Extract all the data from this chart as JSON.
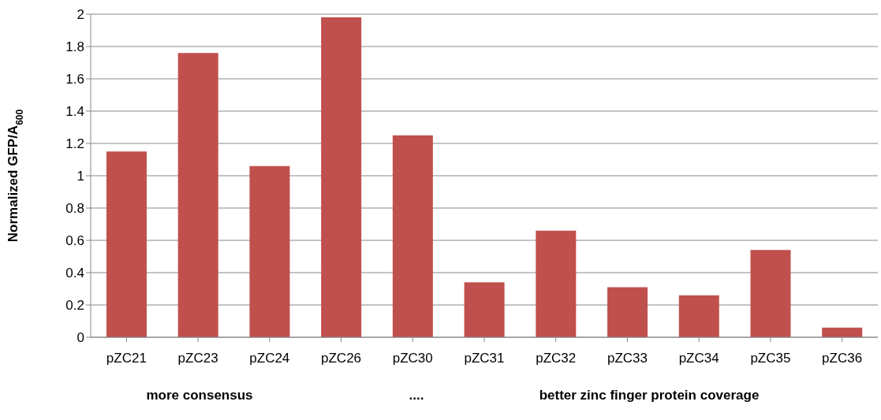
{
  "chart_data": {
    "type": "bar",
    "categories": [
      "pZC21",
      "pZC23",
      "pZC24",
      "pZC26",
      "pZC30",
      "pZC31",
      "pZC32",
      "pZC33",
      "pZC34",
      "pZC35",
      "pZC36"
    ],
    "series": [
      {
        "color": "#c0504d",
        "values": [
          1.15,
          1.76,
          1.06,
          1.98,
          1.25,
          0.34,
          0.66,
          0.31,
          0.26,
          0.54,
          0.06
        ]
      }
    ],
    "ylabel": "Normalized GFP/A$_{600}$",
    "ylim": [
      0,
      2
    ],
    "yticks": [
      0,
      0.2,
      0.4,
      0.6,
      0.8,
      1,
      1.2,
      1.4,
      1.6,
      1.8,
      2
    ],
    "grid": "y",
    "annotations": [
      "more consensus",
      "....",
      "better zinc finger protein coverage"
    ]
  }
}
